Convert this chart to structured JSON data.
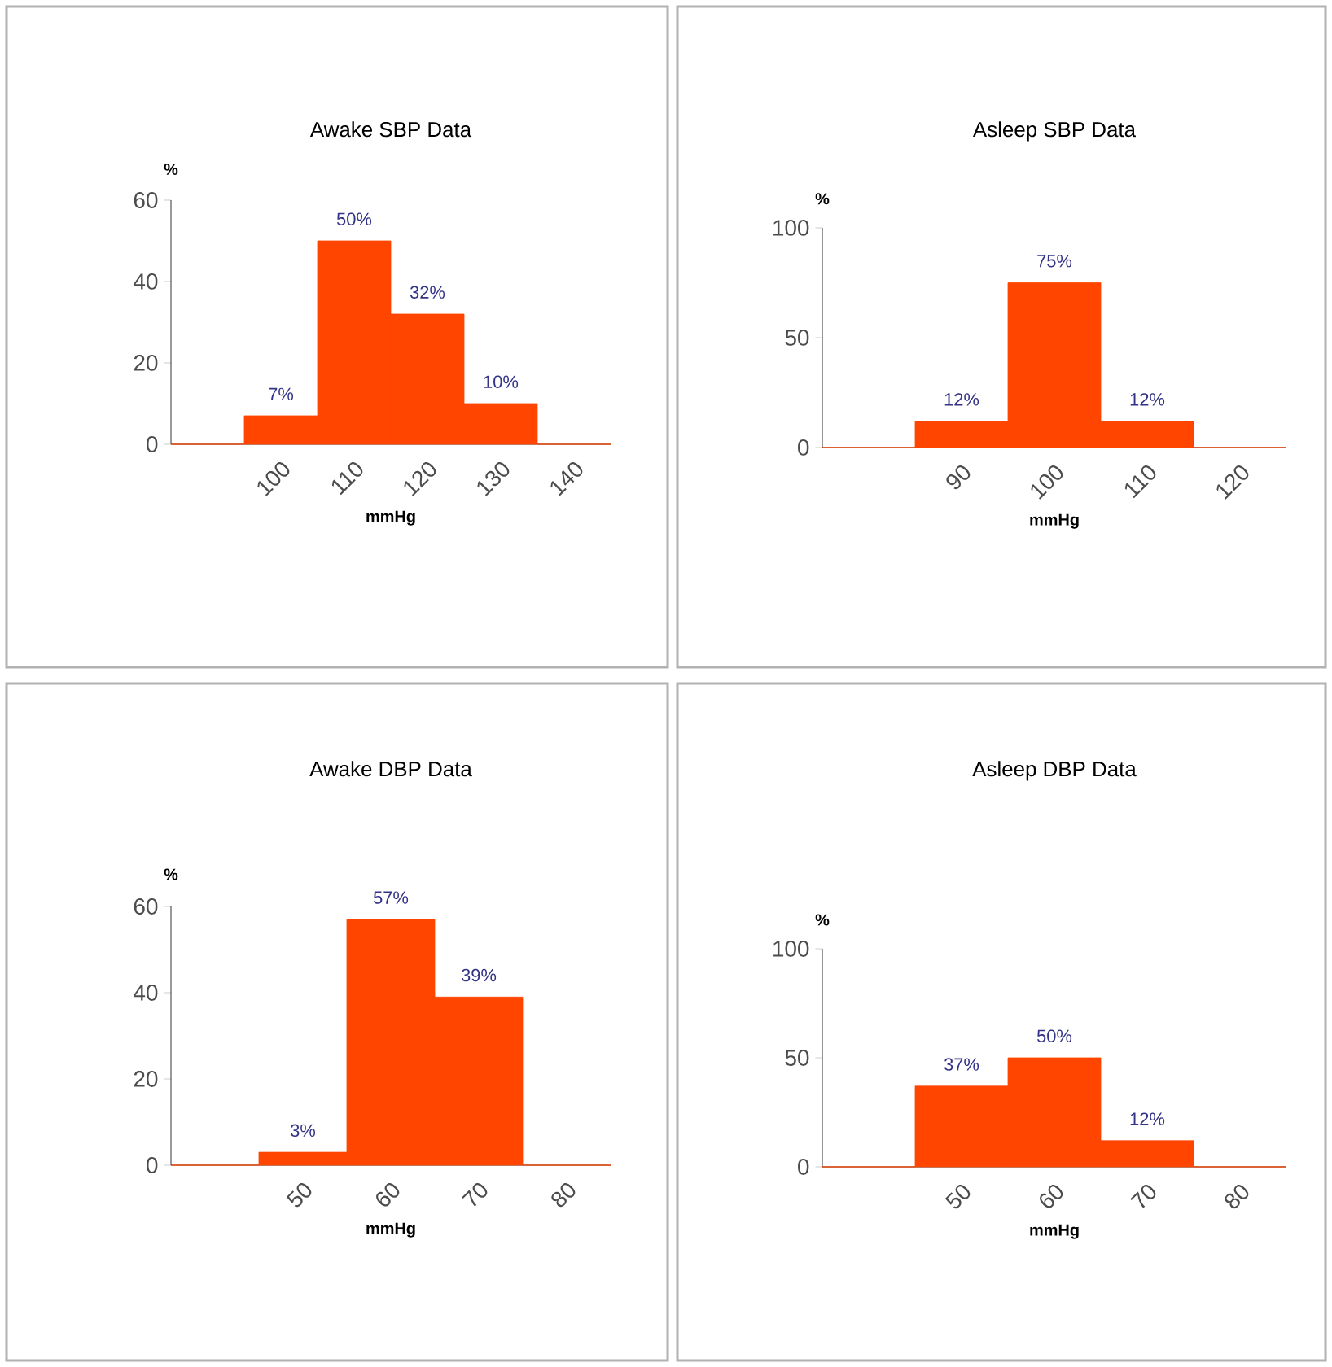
{
  "chart_data": [
    {
      "type": "bar",
      "title": "Awake SBP Data",
      "xlabel": "mmHg",
      "ylabel": "%",
      "categories": [
        null,
        "100",
        "110",
        "120",
        "130",
        "140"
      ],
      "values": [
        0,
        7,
        50,
        32,
        10,
        0
      ],
      "value_labels": [
        null,
        "7%",
        "50%",
        "32%",
        "10%",
        null
      ],
      "color": "#ff4500",
      "ylim": [
        0,
        60
      ],
      "yticks": [
        0,
        20,
        40,
        60
      ]
    },
    {
      "type": "bar",
      "title": "Asleep SBP Data",
      "xlabel": "mmHg",
      "ylabel": "%",
      "categories": [
        null,
        "90",
        "100",
        "110",
        "120"
      ],
      "values": [
        0,
        12,
        75,
        12,
        0
      ],
      "value_labels": [
        null,
        "12%",
        "75%",
        "12%",
        null
      ],
      "color": "#ff4500",
      "ylim": [
        0,
        100
      ],
      "yticks": [
        0,
        50,
        100
      ]
    },
    {
      "type": "bar",
      "title": "Awake DBP Data",
      "xlabel": "mmHg",
      "ylabel": "%",
      "categories": [
        null,
        "50",
        "60",
        "70",
        "80"
      ],
      "values": [
        0,
        3,
        57,
        39,
        0
      ],
      "value_labels": [
        null,
        "3%",
        "57%",
        "39%",
        null
      ],
      "color": "#ff4500",
      "ylim": [
        0,
        60
      ],
      "yticks": [
        0,
        20,
        40,
        60
      ]
    },
    {
      "type": "bar",
      "title": "Asleep DBP Data",
      "xlabel": "mmHg",
      "ylabel": "%",
      "categories": [
        null,
        "50",
        "60",
        "70",
        "80"
      ],
      "values": [
        0,
        37,
        50,
        12,
        0
      ],
      "value_labels": [
        null,
        "37%",
        "50%",
        "12%",
        null
      ],
      "color": "#ff4500",
      "ylim": [
        0,
        100
      ],
      "yticks": [
        0,
        50,
        100
      ]
    }
  ]
}
